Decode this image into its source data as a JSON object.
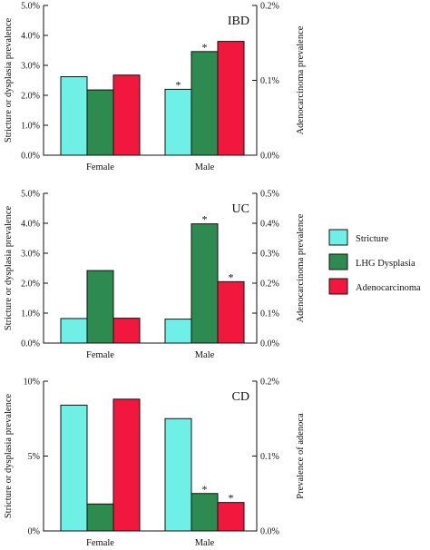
{
  "colors": {
    "stricture": "#6EF0E6",
    "lhg_dysplasia": "#2E8B50",
    "adenocarcinoma": "#F2173C",
    "axis": "#111111"
  },
  "legend": {
    "items": [
      {
        "key": "stricture",
        "label": "Stricture"
      },
      {
        "key": "lhg_dysplasia",
        "label": "LHG Dysplasia"
      },
      {
        "key": "adenocarcinoma",
        "label": "Adenocarcinoma"
      }
    ]
  },
  "chart_data": [
    {
      "type": "bar",
      "panel_label": "IBD",
      "categories": [
        "Female",
        "Male"
      ],
      "ylabel": "Stricture or dysplasia prevalence",
      "ylim": [
        0,
        5
      ],
      "yticks": [
        0,
        1,
        2,
        3,
        4,
        5
      ],
      "ytick_labels": [
        "0.0%",
        "1.0%",
        "2.0%",
        "3.0%",
        "4.0%",
        "5.0%"
      ],
      "y2label": "Adenocarcinoma prevalence",
      "y2lim": [
        0,
        0.2
      ],
      "y2ticks": [
        0,
        0.1,
        0.2
      ],
      "y2tick_labels": [
        "0.0%",
        "0.1%",
        "0.2%"
      ],
      "series": [
        {
          "key": "stricture",
          "axis": "left",
          "values": [
            2.62,
            2.2
          ],
          "significant": [
            false,
            true
          ]
        },
        {
          "key": "lhg_dysplasia",
          "axis": "left",
          "values": [
            2.18,
            3.46
          ],
          "significant": [
            false,
            true
          ]
        },
        {
          "key": "adenocarcinoma",
          "axis": "right",
          "values": [
            0.107,
            0.152
          ],
          "significant": [
            false,
            false
          ]
        }
      ]
    },
    {
      "type": "bar",
      "panel_label": "UC",
      "categories": [
        "Female",
        "Male"
      ],
      "ylabel": "Stricture or dysplasia prevalence",
      "ylim": [
        0,
        5
      ],
      "yticks": [
        0,
        1,
        2,
        3,
        4,
        5
      ],
      "ytick_labels": [
        "0.0%",
        "1.0%",
        "2.0%",
        "3.0%",
        "4.0%",
        "5.0%"
      ],
      "y2label": "Adenocarcinoma prevalence",
      "y2lim": [
        0,
        0.5
      ],
      "y2ticks": [
        0,
        0.1,
        0.2,
        0.3,
        0.4,
        0.5
      ],
      "y2tick_labels": [
        "0.0%",
        "0.1%",
        "0.2%",
        "0.3%",
        "0.4%",
        "0.5%"
      ],
      "series": [
        {
          "key": "stricture",
          "axis": "left",
          "values": [
            0.82,
            0.8
          ],
          "significant": [
            false,
            false
          ]
        },
        {
          "key": "lhg_dysplasia",
          "axis": "left",
          "values": [
            2.42,
            3.98
          ],
          "significant": [
            false,
            true
          ]
        },
        {
          "key": "adenocarcinoma",
          "axis": "right",
          "values": [
            0.083,
            0.205
          ],
          "significant": [
            false,
            true
          ]
        }
      ]
    },
    {
      "type": "bar",
      "panel_label": "CD",
      "categories": [
        "Female",
        "Male"
      ],
      "ylabel": "Stricture or dysplasia prevalence",
      "ylim": [
        0,
        10
      ],
      "yticks": [
        0,
        5,
        10
      ],
      "ytick_labels": [
        "0%",
        "5%",
        "10%"
      ],
      "y2label": "Prevalence of adenoca",
      "y2lim": [
        0,
        0.2
      ],
      "y2ticks": [
        0,
        0.1,
        0.2
      ],
      "y2tick_labels": [
        "0.0%",
        "0.1%",
        "0.2%"
      ],
      "series": [
        {
          "key": "stricture",
          "axis": "left",
          "values": [
            8.4,
            7.5
          ],
          "significant": [
            false,
            false
          ]
        },
        {
          "key": "lhg_dysplasia",
          "axis": "left",
          "values": [
            1.8,
            2.5
          ],
          "significant": [
            false,
            true
          ]
        },
        {
          "key": "adenocarcinoma",
          "axis": "right",
          "values": [
            0.176,
            0.038
          ],
          "significant": [
            false,
            true
          ]
        }
      ]
    }
  ]
}
